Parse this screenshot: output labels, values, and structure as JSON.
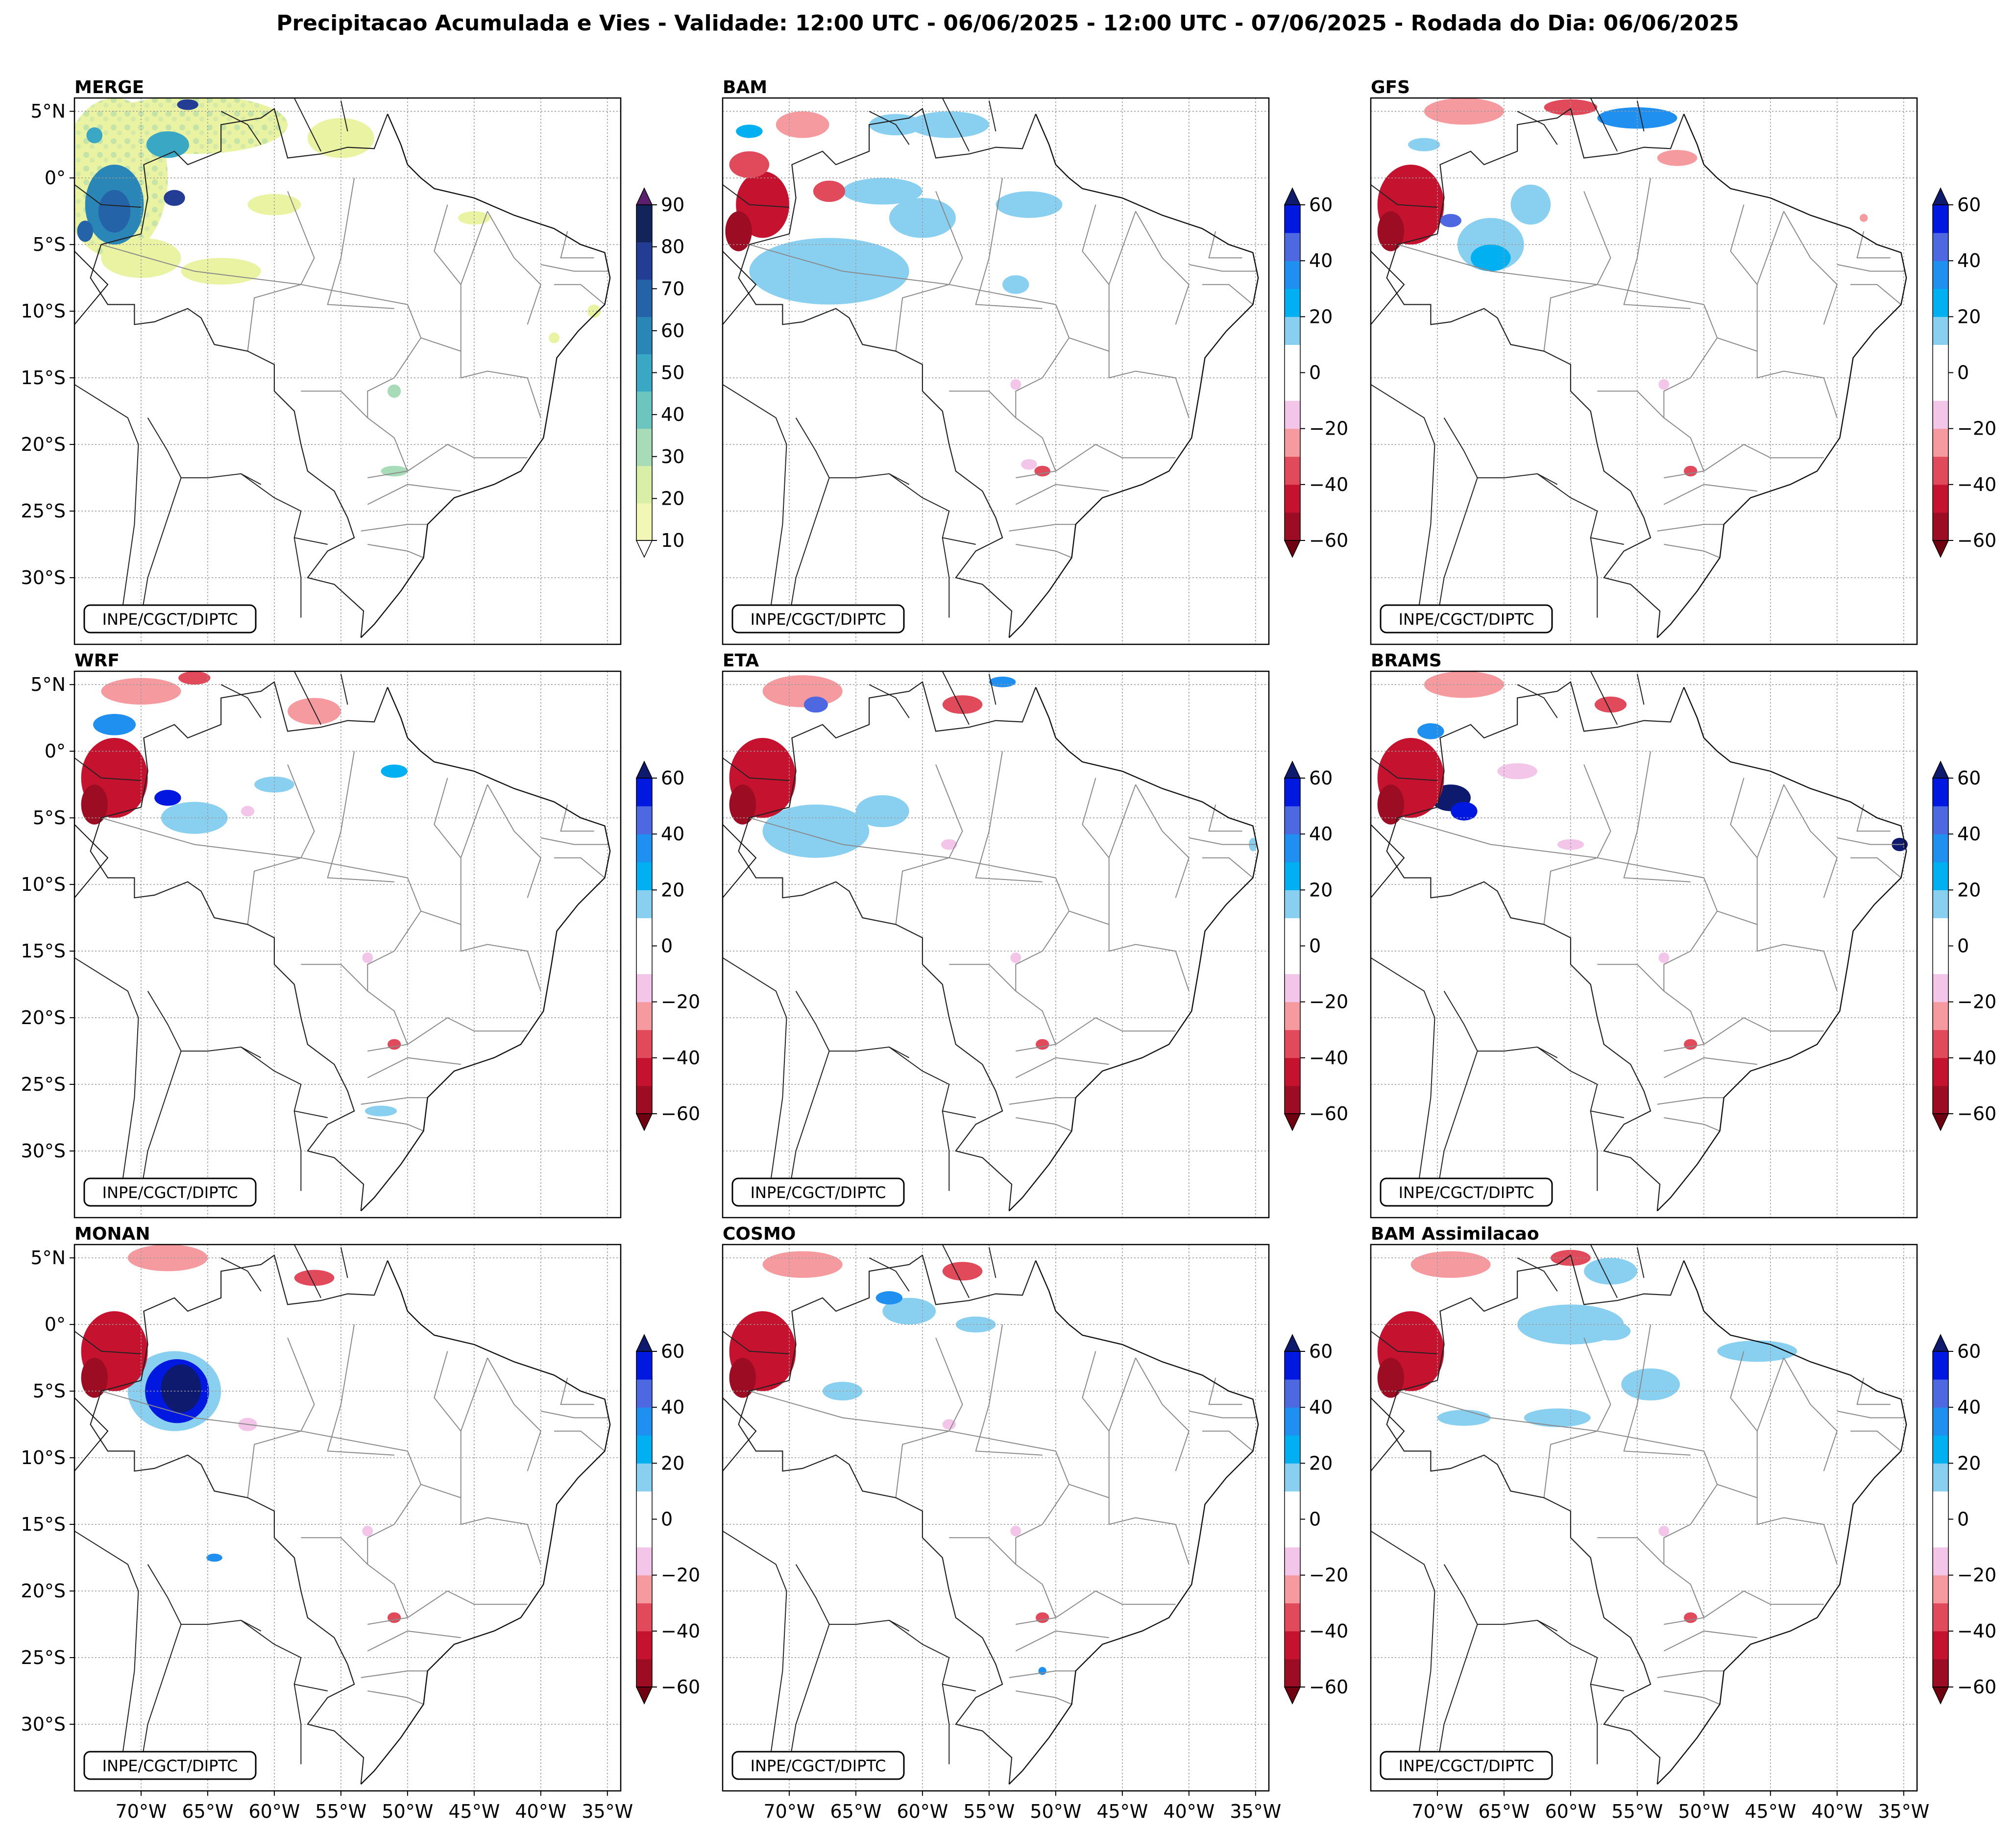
{
  "figure": {
    "title": "Precipitacao Acumulada e Vies - Validade: 12:00 UTC - 06/06/2025 - 12:00 UTC - 07/06/2025 - Rodada do Dia: 06/06/2025"
  },
  "credit": "INPE/CGCT/DIPTC",
  "axes": {
    "lat_ticks": [
      "5°N",
      "0°",
      "5°S",
      "10°S",
      "15°S",
      "20°S",
      "25°S",
      "30°S"
    ],
    "lat_values": [
      5,
      0,
      -5,
      -10,
      -15,
      -20,
      -25,
      -30
    ],
    "lon_ticks": [
      "70°W",
      "65°W",
      "60°W",
      "55°W",
      "50°W",
      "45°W",
      "40°W",
      "35°W"
    ],
    "lon_values": [
      -70,
      -65,
      -60,
      -55,
      -50,
      -45,
      -40,
      -35
    ],
    "lon_range": [
      -75,
      -34
    ],
    "lat_range": [
      -35,
      6
    ]
  },
  "panels": [
    {
      "title": "MERGE",
      "type": "precip"
    },
    {
      "title": "BAM",
      "type": "bias"
    },
    {
      "title": "GFS",
      "type": "bias"
    },
    {
      "title": "WRF",
      "type": "bias"
    },
    {
      "title": "ETA",
      "type": "bias"
    },
    {
      "title": "BRAMS",
      "type": "bias"
    },
    {
      "title": "MONAN",
      "type": "bias"
    },
    {
      "title": "COSMO",
      "type": "bias"
    },
    {
      "title": "BAM Assimilacao",
      "type": "bias"
    }
  ],
  "colorbars": {
    "precip": {
      "tick_labels": [
        "10",
        "20",
        "30",
        "40",
        "50",
        "60",
        "70",
        "80",
        "90"
      ],
      "tick_values": [
        10,
        20,
        30,
        40,
        50,
        60,
        70,
        80,
        90
      ],
      "range": [
        10,
        90
      ],
      "colors": [
        "#f2f7b6",
        "#d9efa8",
        "#a8dcb8",
        "#6cc5be",
        "#3aa8c4",
        "#2b86b8",
        "#2463a8",
        "#233d94",
        "#13245a"
      ],
      "over_color": "#5b1f6e",
      "under_color": "#ffffff"
    },
    "bias": {
      "tick_labels": [
        "60",
        "40",
        "20",
        "0",
        "−20",
        "−40",
        "−60"
      ],
      "tick_values": [
        60,
        40,
        20,
        0,
        -20,
        -40,
        -60
      ],
      "range": [
        -60,
        60
      ],
      "colors": [
        "#9c0d24",
        "#c4122f",
        "#e04a5a",
        "#f59a9e",
        "#f3c5e8",
        "#ffffff",
        "#ffffff",
        "#88cff0",
        "#00b0f0",
        "#1f8ff0",
        "#4d68e0",
        "#0018e0"
      ],
      "over_color": "#0d1a6e",
      "under_color": "#6e0010"
    }
  }
}
